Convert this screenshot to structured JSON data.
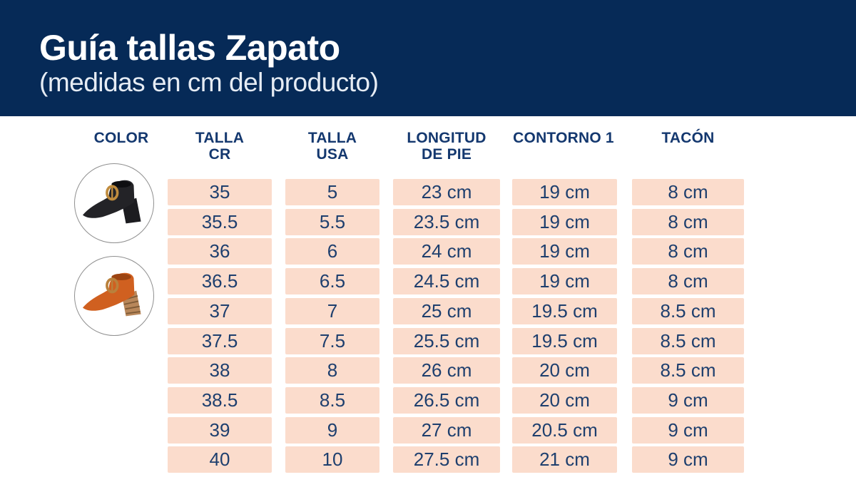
{
  "header": {
    "title": "Guía tallas Zapato",
    "subtitle": "(medidas en cm del producto)"
  },
  "table": {
    "columns": [
      {
        "line1": "COLOR",
        "line2": ""
      },
      {
        "line1": "TALLA",
        "line2": "CR"
      },
      {
        "line1": "TALLA",
        "line2": "USA"
      },
      {
        "line1": "LONGITUD",
        "line2": "DE PIE"
      },
      {
        "line1": "CONTORNO 1",
        "line2": ""
      },
      {
        "line1": "TACÓN",
        "line2": ""
      }
    ],
    "rows": [
      [
        "35",
        "5",
        "23 cm",
        "19 cm",
        "8 cm"
      ],
      [
        "35.5",
        "5.5",
        "23.5 cm",
        "19 cm",
        "8 cm"
      ],
      [
        "36",
        "6",
        "24 cm",
        "19 cm",
        "8 cm"
      ],
      [
        "36.5",
        "6.5",
        "24.5 cm",
        "19 cm",
        "8 cm"
      ],
      [
        "37",
        "7",
        "25 cm",
        "19.5 cm",
        "8.5 cm"
      ],
      [
        "37.5",
        "7.5",
        "25.5 cm",
        "19.5 cm",
        "8.5 cm"
      ],
      [
        "38",
        "8",
        "26 cm",
        "20 cm",
        "8.5 cm"
      ],
      [
        "38.5",
        "8.5",
        "26.5 cm",
        "20 cm",
        "9 cm"
      ],
      [
        "39",
        "9",
        "27 cm",
        "20.5 cm",
        "9 cm"
      ],
      [
        "40",
        "10",
        "27.5 cm",
        "21 cm",
        "9 cm"
      ]
    ]
  },
  "products": [
    {
      "label": "black mule with gold buckle and block heel",
      "body": "#232327",
      "body_dark": "#0e0e11",
      "heel": "#1c1c20",
      "heel_stripe": "#0a0a0c",
      "buckle": "#c08c3e"
    },
    {
      "label": "orange leather mule with buckle and stacked wooden heel",
      "body": "#d06020",
      "body_dark": "#9c4412",
      "heel": "#b8875a",
      "heel_stripe": "#7e5a36",
      "buckle": "#b9813c"
    }
  ],
  "colors": {
    "banner": "#062a57",
    "subtitle_text": "#e6ecf4",
    "heading_text": "#14386f",
    "cell_bg": "#fbdccc",
    "cell_text": "#1e3f6e"
  }
}
